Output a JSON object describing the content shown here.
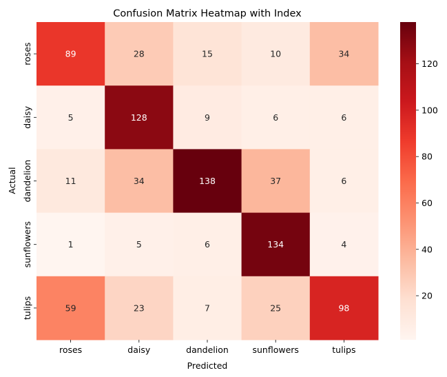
{
  "chart_data": {
    "type": "heatmap",
    "title": "Confusion Matrix Heatmap with Index",
    "xlabel": "Predicted",
    "ylabel": "Actual",
    "x_categories": [
      "roses",
      "daisy",
      "dandelion",
      "sunflowers",
      "tulips"
    ],
    "y_categories": [
      "roses",
      "daisy",
      "dandelion",
      "sunflowers",
      "tulips"
    ],
    "values": [
      [
        89,
        28,
        15,
        10,
        34
      ],
      [
        5,
        128,
        9,
        6,
        6
      ],
      [
        11,
        34,
        138,
        37,
        6
      ],
      [
        1,
        5,
        6,
        134,
        4
      ],
      [
        59,
        23,
        7,
        25,
        98
      ]
    ],
    "colormap": "Reds",
    "colorbar_range": [
      1,
      138
    ],
    "colorbar_ticks": [
      20,
      40,
      60,
      80,
      100,
      120
    ],
    "grid": false
  }
}
